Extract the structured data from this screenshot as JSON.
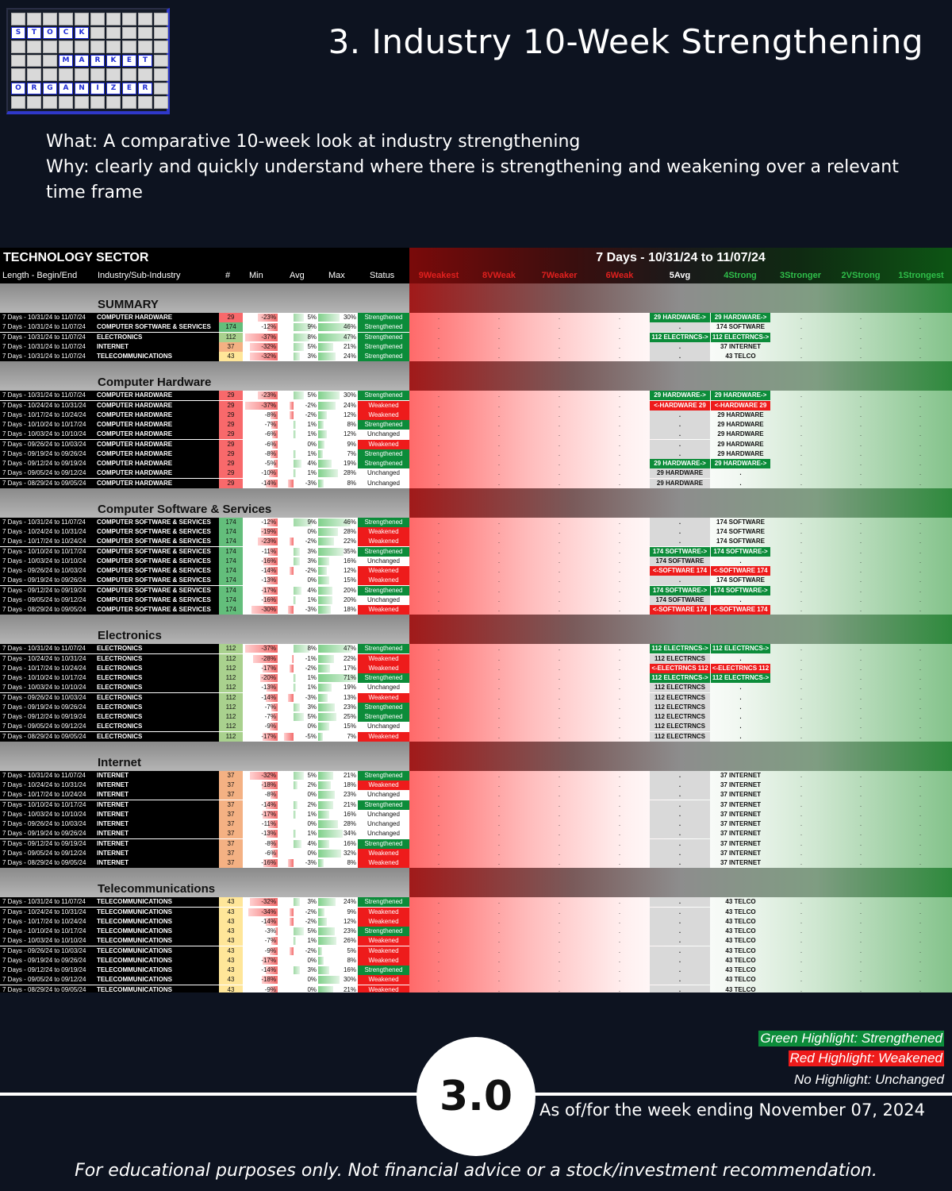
{
  "logo": {
    "rows": [
      [
        " ",
        " ",
        " ",
        " ",
        " ",
        " ",
        " ",
        " ",
        " ",
        " "
      ],
      [
        "S",
        "T",
        "O",
        "C",
        "K",
        " ",
        " ",
        " ",
        " ",
        " "
      ],
      [
        " ",
        " ",
        " ",
        " ",
        " ",
        " ",
        " ",
        " ",
        " ",
        " "
      ],
      [
        " ",
        " ",
        " ",
        "M",
        "A",
        "R",
        "K",
        "E",
        "T",
        " "
      ],
      [
        " ",
        " ",
        " ",
        " ",
        " ",
        " ",
        " ",
        " ",
        " ",
        " "
      ],
      [
        "O",
        "R",
        "G",
        "A",
        "N",
        "I",
        "Z",
        "E",
        "R",
        " "
      ],
      [
        " ",
        " ",
        " ",
        " ",
        " ",
        " ",
        " ",
        " ",
        " ",
        " "
      ]
    ],
    "highlight": [
      [
        1,
        0
      ],
      [
        1,
        1
      ],
      [
        1,
        2
      ],
      [
        1,
        3
      ],
      [
        1,
        4
      ],
      [
        3,
        3
      ],
      [
        3,
        4
      ],
      [
        3,
        5
      ],
      [
        3,
        6
      ],
      [
        3,
        7
      ],
      [
        3,
        8
      ],
      [
        5,
        0
      ],
      [
        5,
        1
      ],
      [
        5,
        2
      ],
      [
        5,
        3
      ],
      [
        5,
        4
      ],
      [
        5,
        5
      ],
      [
        5,
        6
      ],
      [
        5,
        7
      ],
      [
        5,
        8
      ]
    ]
  },
  "title": "3. Industry 10-Week Strengthening",
  "intro": {
    "what": "What: A comparative 10-week look at industry strengthening",
    "why": "Why: clearly and quickly understand where there is strengthening and weakening over a relevant time frame"
  },
  "table": {
    "sector": "TECHNOLOGY SECTOR",
    "range": "7 Days - 10/31/24 to 11/07/24",
    "columns": [
      "Length - Begin/End",
      "Industry/Sub-Industry",
      "#",
      "Min",
      "Avg",
      "Max",
      "Status"
    ],
    "strength_columns": [
      {
        "label": "9Weakest",
        "color": "#e0201e"
      },
      {
        "label": "8VWeak",
        "color": "#e0201e"
      },
      {
        "label": "7Weaker",
        "color": "#e0201e"
      },
      {
        "label": "6Weak",
        "color": "#e0201e"
      },
      {
        "label": "5Avg",
        "color": "#ffffff"
      },
      {
        "label": "4Strong",
        "color": "#2fbf4a"
      },
      {
        "label": "3Stronger",
        "color": "#2fbf4a"
      },
      {
        "label": "2VStrong",
        "color": "#2fbf4a"
      },
      {
        "label": "1Strongest",
        "color": "#2fbf4a"
      }
    ],
    "sections": [
      {
        "name": "SUMMARY",
        "rows": [
          [
            "7 Days - 10/31/24 to 11/07/24",
            "COMPUTER HARDWARE",
            "29",
            "-23%",
            "5%",
            "30%",
            "Strengthened",
            "29 HARDWARE->",
            "29 HARDWARE->"
          ],
          [
            "7 Days - 10/31/24 to 11/07/24",
            "COMPUTER SOFTWARE & SERVICES",
            "174",
            "-12%",
            "9%",
            "46%",
            "Strengthened",
            ".",
            "174 SOFTWARE"
          ],
          [
            "7 Days - 10/31/24 to 11/07/24",
            "ELECTRONICS",
            "112",
            "-37%",
            "8%",
            "47%",
            "Strengthened",
            "112 ELECTRNCS->",
            "112 ELECTRNCS->"
          ],
          [
            "7 Days - 10/31/24 to 11/07/24",
            "INTERNET",
            "37",
            "-32%",
            "5%",
            "21%",
            "Strengthened",
            ".",
            "37 INTERNET"
          ],
          [
            "7 Days - 10/31/24 to 11/07/24",
            "TELECOMMUNICATIONS",
            "43",
            "-32%",
            "3%",
            "24%",
            "Strengthened",
            ".",
            "43 TELCO"
          ]
        ]
      },
      {
        "name": "Computer Hardware",
        "rows": [
          [
            "7 Days - 10/31/24 to 11/07/24",
            "COMPUTER HARDWARE",
            "29",
            "-23%",
            "5%",
            "30%",
            "Strengthened",
            "29 HARDWARE->",
            "29 HARDWARE->"
          ],
          [
            "7 Days - 10/24/24 to 10/31/24",
            "COMPUTER HARDWARE",
            "29",
            "-37%",
            "-2%",
            "24%",
            "Weakened",
            "<-HARDWARE 29",
            "<-HARDWARE 29"
          ],
          [
            "7 Days - 10/17/24 to 10/24/24",
            "COMPUTER HARDWARE",
            "29",
            "-8%",
            "-2%",
            "12%",
            "Weakened",
            ".",
            "29 HARDWARE"
          ],
          [
            "7 Days - 10/10/24 to 10/17/24",
            "COMPUTER HARDWARE",
            "29",
            "-7%",
            "1%",
            "8%",
            "Strengthened",
            ".",
            "29 HARDWARE"
          ],
          [
            "7 Days - 10/03/24 to 10/10/24",
            "COMPUTER HARDWARE",
            "29",
            "-6%",
            "1%",
            "12%",
            "Unchanged",
            ".",
            "29 HARDWARE"
          ],
          [
            "7 Days - 09/26/24 to 10/03/24",
            "COMPUTER HARDWARE",
            "29",
            "-6%",
            "0%",
            "9%",
            "Weakened",
            ".",
            "29 HARDWARE"
          ],
          [
            "7 Days - 09/19/24 to 09/26/24",
            "COMPUTER HARDWARE",
            "29",
            "-8%",
            "1%",
            "7%",
            "Strengthened",
            ".",
            "29 HARDWARE"
          ],
          [
            "7 Days - 09/12/24 to 09/19/24",
            "COMPUTER HARDWARE",
            "29",
            "-5%",
            "4%",
            "19%",
            "Strengthened",
            "29 HARDWARE->",
            "29 HARDWARE->"
          ],
          [
            "7 Days - 09/05/24 to 09/12/24",
            "COMPUTER HARDWARE",
            "29",
            "-10%",
            "1%",
            "28%",
            "Unchanged",
            "29 HARDWARE",
            "."
          ],
          [
            "7 Days - 08/29/24 to 09/05/24",
            "COMPUTER HARDWARE",
            "29",
            "-14%",
            "-3%",
            "8%",
            "Unchanged",
            "29 HARDWARE",
            "."
          ]
        ]
      },
      {
        "name": "Computer Software & Services",
        "rows": [
          [
            "7 Days - 10/31/24 to 11/07/24",
            "COMPUTER SOFTWARE & SERVICES",
            "174",
            "-12%",
            "9%",
            "46%",
            "Strengthened",
            ".",
            "174 SOFTWARE"
          ],
          [
            "7 Days - 10/24/24 to 10/31/24",
            "COMPUTER SOFTWARE & SERVICES",
            "174",
            "-19%",
            "0%",
            "28%",
            "Weakened",
            ".",
            "174 SOFTWARE"
          ],
          [
            "7 Days - 10/17/24 to 10/24/24",
            "COMPUTER SOFTWARE & SERVICES",
            "174",
            "-23%",
            "-2%",
            "22%",
            "Weakened",
            ".",
            "174 SOFTWARE"
          ],
          [
            "7 Days - 10/10/24 to 10/17/24",
            "COMPUTER SOFTWARE & SERVICES",
            "174",
            "-11%",
            "3%",
            "35%",
            "Strengthened",
            "174 SOFTWARE->",
            "174 SOFTWARE->"
          ],
          [
            "7 Days - 10/03/24 to 10/10/24",
            "COMPUTER SOFTWARE & SERVICES",
            "174",
            "-16%",
            "3%",
            "16%",
            "Unchanged",
            "174 SOFTWARE",
            "."
          ],
          [
            "7 Days - 09/26/24 to 10/03/24",
            "COMPUTER SOFTWARE & SERVICES",
            "174",
            "-14%",
            "-2%",
            "12%",
            "Weakened",
            "<-SOFTWARE 174",
            "<-SOFTWARE 174"
          ],
          [
            "7 Days - 09/19/24 to 09/26/24",
            "COMPUTER SOFTWARE & SERVICES",
            "174",
            "-13%",
            "0%",
            "15%",
            "Weakened",
            ".",
            "174 SOFTWARE"
          ],
          [
            "7 Days - 09/12/24 to 09/19/24",
            "COMPUTER SOFTWARE & SERVICES",
            "174",
            "-17%",
            "4%",
            "20%",
            "Strengthened",
            "174 SOFTWARE->",
            "174 SOFTWARE->"
          ],
          [
            "7 Days - 09/05/24 to 09/12/24",
            "COMPUTER SOFTWARE & SERVICES",
            "174",
            "-16%",
            "1%",
            "20%",
            "Unchanged",
            "174 SOFTWARE",
            "."
          ],
          [
            "7 Days - 08/29/24 to 09/05/24",
            "COMPUTER SOFTWARE & SERVICES",
            "174",
            "-30%",
            "-3%",
            "18%",
            "Weakened",
            "<-SOFTWARE 174",
            "<-SOFTWARE 174"
          ]
        ]
      },
      {
        "name": "Electronics",
        "rows": [
          [
            "7 Days - 10/31/24 to 11/07/24",
            "ELECTRONICS",
            "112",
            "-37%",
            "8%",
            "47%",
            "Strengthened",
            "112 ELECTRNCS->",
            "112 ELECTRNCS->"
          ],
          [
            "7 Days - 10/24/24 to 10/31/24",
            "ELECTRONICS",
            "112",
            "-28%",
            "-1%",
            "22%",
            "Weakened",
            "112 ELECTRNCS",
            "."
          ],
          [
            "7 Days - 10/17/24 to 10/24/24",
            "ELECTRONICS",
            "112",
            "-17%",
            "-2%",
            "17%",
            "Weakened",
            "<-ELECTRNCS 112",
            "<-ELECTRNCS 112"
          ],
          [
            "7 Days - 10/10/24 to 10/17/24",
            "ELECTRONICS",
            "112",
            "-20%",
            "1%",
            "71%",
            "Strengthened",
            "112 ELECTRNCS->",
            "112 ELECTRNCS->"
          ],
          [
            "7 Days - 10/03/24 to 10/10/24",
            "ELECTRONICS",
            "112",
            "-13%",
            "1%",
            "19%",
            "Unchanged",
            "112 ELECTRNCS",
            "."
          ],
          [
            "7 Days - 09/26/24 to 10/03/24",
            "ELECTRONICS",
            "112",
            "-14%",
            "-3%",
            "13%",
            "Weakened",
            "112 ELECTRNCS",
            "."
          ],
          [
            "7 Days - 09/19/24 to 09/26/24",
            "ELECTRONICS",
            "112",
            "-7%",
            "3%",
            "23%",
            "Strengthened",
            "112 ELECTRNCS",
            "."
          ],
          [
            "7 Days - 09/12/24 to 09/19/24",
            "ELECTRONICS",
            "112",
            "-7%",
            "5%",
            "25%",
            "Strengthened",
            "112 ELECTRNCS",
            "."
          ],
          [
            "7 Days - 09/05/24 to 09/12/24",
            "ELECTRONICS",
            "112",
            "-9%",
            "0%",
            "15%",
            "Unchanged",
            "112 ELECTRNCS",
            "."
          ],
          [
            "7 Days - 08/29/24 to 09/05/24",
            "ELECTRONICS",
            "112",
            "-17%",
            "-5%",
            "7%",
            "Weakened",
            "112 ELECTRNCS",
            "."
          ]
        ]
      },
      {
        "name": "Internet",
        "rows": [
          [
            "7 Days - 10/31/24 to 11/07/24",
            "INTERNET",
            "37",
            "-32%",
            "5%",
            "21%",
            "Strengthened",
            ".",
            "37 INTERNET"
          ],
          [
            "7 Days - 10/24/24 to 10/31/24",
            "INTERNET",
            "37",
            "-18%",
            "2%",
            "18%",
            "Weakened",
            ".",
            "37 INTERNET"
          ],
          [
            "7 Days - 10/17/24 to 10/24/24",
            "INTERNET",
            "37",
            "-8%",
            "0%",
            "23%",
            "Unchanged",
            ".",
            "37 INTERNET"
          ],
          [
            "7 Days - 10/10/24 to 10/17/24",
            "INTERNET",
            "37",
            "-14%",
            "2%",
            "21%",
            "Strengthened",
            ".",
            "37 INTERNET"
          ],
          [
            "7 Days - 10/03/24 to 10/10/24",
            "INTERNET",
            "37",
            "-17%",
            "1%",
            "16%",
            "Unchanged",
            ".",
            "37 INTERNET"
          ],
          [
            "7 Days - 09/26/24 to 10/03/24",
            "INTERNET",
            "37",
            "-11%",
            "0%",
            "28%",
            "Unchanged",
            ".",
            "37 INTERNET"
          ],
          [
            "7 Days - 09/19/24 to 09/26/24",
            "INTERNET",
            "37",
            "-13%",
            "1%",
            "34%",
            "Unchanged",
            ".",
            "37 INTERNET"
          ],
          [
            "7 Days - 09/12/24 to 09/19/24",
            "INTERNET",
            "37",
            "-8%",
            "4%",
            "16%",
            "Strengthened",
            ".",
            "37 INTERNET"
          ],
          [
            "7 Days - 09/05/24 to 09/12/24",
            "INTERNET",
            "37",
            "-6%",
            "0%",
            "32%",
            "Weakened",
            ".",
            "37 INTERNET"
          ],
          [
            "7 Days - 08/29/24 to 09/05/24",
            "INTERNET",
            "37",
            "-16%",
            "-3%",
            "8%",
            "Weakened",
            ".",
            "37 INTERNET"
          ]
        ]
      },
      {
        "name": "Telecommunications",
        "rows": [
          [
            "7 Days - 10/31/24 to 11/07/24",
            "TELECOMMUNICATIONS",
            "43",
            "-32%",
            "3%",
            "24%",
            "Strengthened",
            ".",
            "43 TELCO"
          ],
          [
            "7 Days - 10/24/24 to 10/31/24",
            "TELECOMMUNICATIONS",
            "43",
            "-34%",
            "-2%",
            "9%",
            "Weakened",
            ".",
            "43 TELCO"
          ],
          [
            "7 Days - 10/17/24 to 10/24/24",
            "TELECOMMUNICATIONS",
            "43",
            "-14%",
            "-2%",
            "12%",
            "Weakened",
            ".",
            "43 TELCO"
          ],
          [
            "7 Days - 10/10/24 to 10/17/24",
            "TELECOMMUNICATIONS",
            "43",
            "-3%",
            "5%",
            "23%",
            "Strengthened",
            ".",
            "43 TELCO"
          ],
          [
            "7 Days - 10/03/24 to 10/10/24",
            "TELECOMMUNICATIONS",
            "43",
            "-7%",
            "1%",
            "26%",
            "Weakened",
            ".",
            "43 TELCO"
          ],
          [
            "7 Days - 09/26/24 to 10/03/24",
            "TELECOMMUNICATIONS",
            "43",
            "-9%",
            "-2%",
            "5%",
            "Weakened",
            ".",
            "43 TELCO"
          ],
          [
            "7 Days - 09/19/24 to 09/26/24",
            "TELECOMMUNICATIONS",
            "43",
            "-17%",
            "0%",
            "8%",
            "Weakened",
            ".",
            "43 TELCO"
          ],
          [
            "7 Days - 09/12/24 to 09/19/24",
            "TELECOMMUNICATIONS",
            "43",
            "-14%",
            "3%",
            "16%",
            "Strengthened",
            ".",
            "43 TELCO"
          ],
          [
            "7 Days - 09/05/24 to 09/12/24",
            "TELECOMMUNICATIONS",
            "43",
            "-18%",
            "0%",
            "30%",
            "Weakened",
            ".",
            "43 TELCO"
          ],
          [
            "7 Days - 08/29/24 to 09/05/24",
            "TELECOMMUNICATIONS",
            "43",
            "-9%",
            "0%",
            "21%",
            "Weakened",
            ".",
            "43 TELCO"
          ]
        ]
      }
    ],
    "count_colors": {
      "29": "#f8696b",
      "174": "#63be7b",
      "112": "#a9d18e",
      "37": "#f4b183",
      "43": "#ffe699"
    }
  },
  "legend": {
    "strengthened": "Green Highlight: Strengthened",
    "weakened": "Red Highlight: Weakened",
    "unchanged": "No Highlight: Unchanged"
  },
  "badge": "3.0",
  "as_of": "As of/for the week ending November 07, 2024",
  "disclaimer": "For educational purposes only. Not financial advice or a stock/investment recommendation.",
  "colors": {
    "background": "#0d1320",
    "strengthened": "#0c8c3a",
    "weakened": "#ee1b1b"
  }
}
